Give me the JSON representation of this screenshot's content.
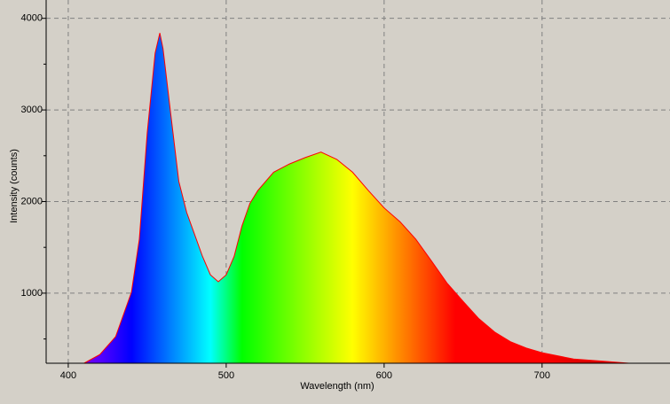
{
  "chart_data": {
    "type": "area",
    "xlabel": "Wavelength (nm)",
    "ylabel": "Intensity (counts)",
    "x": [
      410,
      420,
      430,
      440,
      445,
      450,
      455,
      458,
      460,
      465,
      470,
      475,
      480,
      485,
      490,
      495,
      500,
      505,
      510,
      515,
      520,
      530,
      540,
      550,
      560,
      570,
      580,
      590,
      600,
      610,
      620,
      630,
      640,
      650,
      660,
      670,
      680,
      690,
      700,
      720,
      740,
      755
    ],
    "series": [
      {
        "name": "Intensity",
        "color": "#ff0000",
        "values": [
          235,
          330,
          525,
          1010,
          1590,
          2750,
          3620,
          3840,
          3670,
          2940,
          2220,
          1880,
          1640,
          1400,
          1200,
          1125,
          1200,
          1400,
          1735,
          1980,
          2120,
          2320,
          2410,
          2480,
          2540,
          2460,
          2320,
          2120,
          1930,
          1780,
          1590,
          1350,
          1105,
          910,
          720,
          575,
          470,
          400,
          350,
          280,
          255,
          235
        ]
      }
    ],
    "xlim": [
      386,
      781
    ],
    "ylim": [
      235,
      4200
    ],
    "xticks": [
      400,
      500,
      600,
      700
    ],
    "yticks": [
      1000,
      2000,
      3000,
      4000
    ],
    "yminorticks": [
      500,
      1500,
      2500,
      3500
    ],
    "grid": true
  }
}
